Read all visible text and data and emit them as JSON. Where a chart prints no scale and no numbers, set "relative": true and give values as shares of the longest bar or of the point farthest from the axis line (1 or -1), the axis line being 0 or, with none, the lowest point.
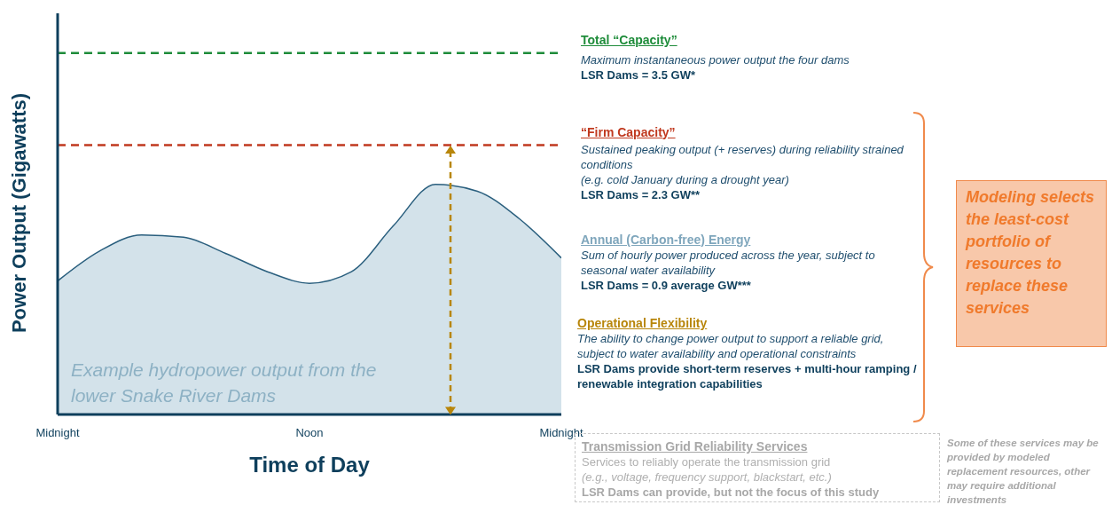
{
  "chart_data": {
    "type": "area",
    "relative": true,
    "xlabel": "Time of Day",
    "ylabel": "Power Output (Gigawatts)",
    "categories": [
      "Midnight",
      null,
      null,
      null,
      null,
      null,
      "Noon",
      null,
      null,
      null,
      null,
      null,
      "Midnight"
    ],
    "series": [
      {
        "color": "#d3e2ea",
        "values": [
          0.58,
          0.71,
          0.78,
          0.77,
          0.7,
          0.62,
          0.57,
          0.62,
          0.82,
          1.0,
          0.97,
          0.85,
          0.68
        ]
      }
    ],
    "ref_lines": [
      {
        "axis": "y",
        "value": 1.57,
        "label": "Total “Capacity”",
        "color": "#1e8c3a",
        "line_style": "dashed"
      },
      {
        "axis": "y",
        "value": 1.17,
        "label": "“Firm Capacity”",
        "color": "#c0391f",
        "line_style": "dashed"
      }
    ],
    "annotations": [
      "Maximum instantaneous power output the four dams",
      "LSR Dams = 3.5 GW*",
      "Sustained peaking output (+ reserves) during reliability strained conditions",
      "(e.g. cold January during a drought year)",
      "LSR Dams = 2.3 GW**",
      "Annual (Carbon-free) Energy",
      "Sum of hourly power produced across the year, subject to seasonal water availability",
      "LSR Dams = 0.9 average GW***",
      "Operational Flexibility",
      "The ability to change power output to support a reliable grid, subject to water availability and operational constraints",
      "LSR Dams provide short-term reserves + multi-hour ramping / renewable integration capabilities",
      "Example hydropower output from the lower Snake River Dams",
      "Modeling selects the least-cost portfolio of resources to replace these services",
      "Transmission Grid Reliability Services",
      "Services to reliably operate the transmission grid",
      "(e.g., voltage, frequency support, blackstart, etc.)",
      "LSR Dams can provide, but not the focus of this study",
      "Some of these services may be provided by modeled replacement resources, other may require additional investments"
    ]
  }
}
